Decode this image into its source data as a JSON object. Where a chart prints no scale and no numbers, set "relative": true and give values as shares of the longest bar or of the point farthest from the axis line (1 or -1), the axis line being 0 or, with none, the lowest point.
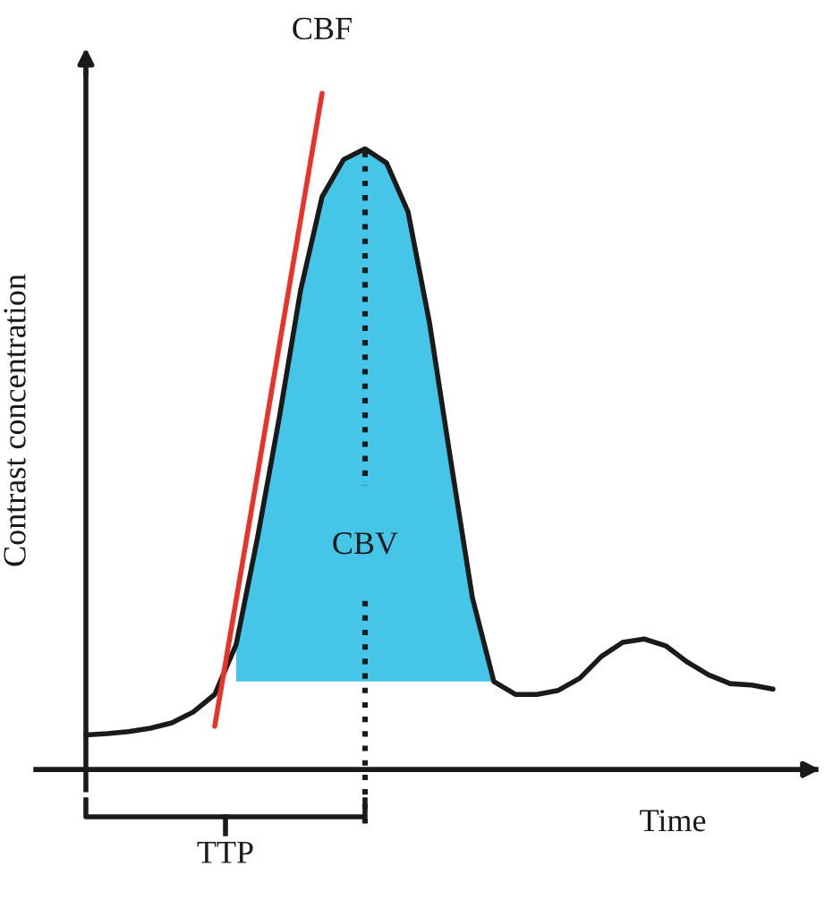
{
  "chart_data": {
    "type": "line",
    "relative": true,
    "xlabel": "Time",
    "ylabel": "Contrast concentration",
    "tick_labels": false,
    "categories": [
      null,
      null,
      null,
      null,
      null,
      null,
      null,
      null,
      null,
      null,
      null,
      null,
      null,
      null,
      null,
      null,
      null,
      null,
      null,
      null,
      null,
      null,
      null,
      null,
      null,
      null,
      null,
      null,
      null,
      null,
      null,
      null,
      null
    ],
    "series": [
      {
        "type": "area",
        "color": "#45c6e8",
        "values": [
          null,
          null,
          null,
          null,
          null,
          null,
          null,
          0.185,
          0.344,
          0.519,
          0.709,
          0.847,
          0.902,
          0.918,
          0.897,
          0.825,
          0.661,
          0.455,
          0.254,
          0.13,
          null,
          null,
          null,
          null,
          null,
          null,
          null,
          null,
          null,
          null,
          null,
          null,
          null
        ]
      },
      {
        "color": "#1a1a1a",
        "values": [
          0.051,
          0.053,
          0.056,
          0.061,
          0.069,
          0.085,
          0.111,
          0.185,
          0.344,
          0.519,
          0.709,
          0.847,
          0.902,
          0.918,
          0.897,
          0.825,
          0.661,
          0.455,
          0.254,
          0.13,
          0.111,
          0.111,
          0.117,
          0.135,
          0.167,
          0.188,
          0.193,
          0.183,
          0.159,
          0.14,
          0.127,
          0.125,
          0.119
        ]
      },
      {
        "type": "line",
        "color": "#e8322a",
        "values": [
          null,
          null,
          null,
          null,
          null,
          null,
          0.064,
          0.251,
          0.438,
          0.626,
          0.813,
          1.0,
          null,
          null,
          null,
          null,
          null,
          null,
          null,
          null,
          null,
          null,
          null,
          null,
          null,
          null,
          null,
          null,
          null,
          null,
          null,
          null,
          null
        ]
      }
    ],
    "annotations": [
      "CBF",
      "CBV",
      "TTP"
    ]
  }
}
